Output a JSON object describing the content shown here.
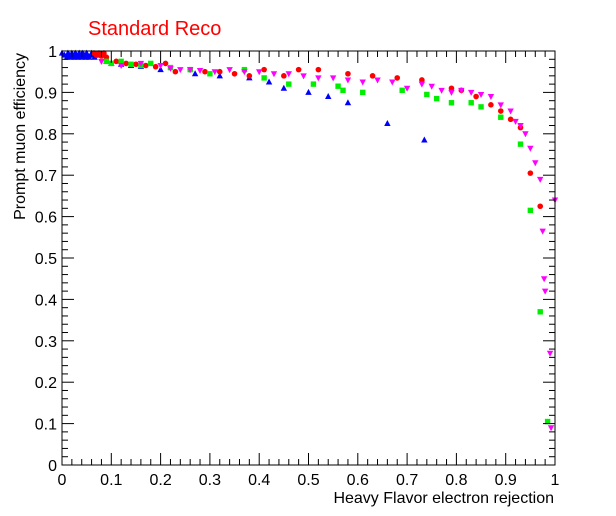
{
  "chart_data": {
    "type": "scatter",
    "title": "Standard Reco",
    "xlabel": "Heavy Flavor electron rejection",
    "ylabel": "Prompt muon efficiency",
    "xlim": [
      0,
      1
    ],
    "ylim": [
      0,
      1
    ],
    "x_ticks": [
      "0",
      "0.1",
      "0.2",
      "0.3",
      "0.4",
      "0.5",
      "0.6",
      "0.7",
      "0.8",
      "0.9",
      "1"
    ],
    "y_ticks": [
      "0",
      "0.1",
      "0.2",
      "0.3",
      "0.4",
      "0.5",
      "0.6",
      "0.7",
      "0.8",
      "0.9",
      "1"
    ],
    "grid": false,
    "legend": "none",
    "colors": {
      "title": "#ff0000",
      "frame": "#000000"
    },
    "series": [
      {
        "marker": "triangle-up",
        "color": "#0000ff",
        "points": [
          [
            0.0,
            0.995
          ],
          [
            0.005,
            0.99
          ],
          [
            0.01,
            0.985
          ],
          [
            0.012,
            0.995
          ],
          [
            0.015,
            0.99
          ],
          [
            0.018,
            0.985
          ],
          [
            0.02,
            0.995
          ],
          [
            0.022,
            0.99
          ],
          [
            0.025,
            0.985
          ],
          [
            0.027,
            0.995
          ],
          [
            0.03,
            0.99
          ],
          [
            0.032,
            0.985
          ],
          [
            0.035,
            0.995
          ],
          [
            0.037,
            0.99
          ],
          [
            0.04,
            0.985
          ],
          [
            0.042,
            0.995
          ],
          [
            0.045,
            0.99
          ],
          [
            0.048,
            0.985
          ],
          [
            0.05,
            0.995
          ],
          [
            0.052,
            0.99
          ],
          [
            0.055,
            0.985
          ],
          [
            0.058,
            0.99
          ],
          [
            0.06,
            0.995
          ],
          [
            0.063,
            0.99
          ],
          [
            0.066,
            0.985
          ],
          [
            0.07,
            0.99
          ],
          [
            0.09,
            0.975
          ],
          [
            0.1,
            0.97
          ],
          [
            0.12,
            0.968
          ],
          [
            0.14,
            0.965
          ],
          [
            0.16,
            0.963
          ],
          [
            0.2,
            0.955
          ],
          [
            0.27,
            0.945
          ],
          [
            0.32,
            0.94
          ],
          [
            0.38,
            0.935
          ],
          [
            0.42,
            0.925
          ],
          [
            0.45,
            0.91
          ],
          [
            0.5,
            0.9
          ],
          [
            0.54,
            0.89
          ],
          [
            0.58,
            0.875
          ],
          [
            0.66,
            0.825
          ],
          [
            0.735,
            0.785
          ]
        ]
      },
      {
        "marker": "circle",
        "color": "#ff0000",
        "points": [
          [
            0.065,
            0.995
          ],
          [
            0.07,
            0.99
          ],
          [
            0.075,
            0.995
          ],
          [
            0.08,
            0.988
          ],
          [
            0.085,
            0.995
          ],
          [
            0.09,
            0.985
          ],
          [
            0.11,
            0.975
          ],
          [
            0.13,
            0.97
          ],
          [
            0.15,
            0.968
          ],
          [
            0.17,
            0.965
          ],
          [
            0.19,
            0.962
          ],
          [
            0.21,
            0.97
          ],
          [
            0.23,
            0.95
          ],
          [
            0.26,
            0.955
          ],
          [
            0.29,
            0.95
          ],
          [
            0.32,
            0.95
          ],
          [
            0.35,
            0.945
          ],
          [
            0.38,
            0.94
          ],
          [
            0.41,
            0.955
          ],
          [
            0.45,
            0.94
          ],
          [
            0.48,
            0.955
          ],
          [
            0.52,
            0.955
          ],
          [
            0.58,
            0.945
          ],
          [
            0.63,
            0.94
          ],
          [
            0.68,
            0.935
          ],
          [
            0.73,
            0.93
          ],
          [
            0.79,
            0.91
          ],
          [
            0.81,
            0.905
          ],
          [
            0.84,
            0.89
          ],
          [
            0.87,
            0.87
          ],
          [
            0.89,
            0.855
          ],
          [
            0.91,
            0.835
          ],
          [
            0.93,
            0.815
          ],
          [
            0.95,
            0.705
          ],
          [
            0.97,
            0.625
          ]
        ]
      },
      {
        "marker": "square",
        "color": "#00ee00",
        "points": [
          [
            0.09,
            0.975
          ],
          [
            0.1,
            0.97
          ],
          [
            0.12,
            0.975
          ],
          [
            0.14,
            0.968
          ],
          [
            0.16,
            0.965
          ],
          [
            0.18,
            0.97
          ],
          [
            0.22,
            0.96
          ],
          [
            0.26,
            0.955
          ],
          [
            0.3,
            0.945
          ],
          [
            0.37,
            0.955
          ],
          [
            0.41,
            0.935
          ],
          [
            0.46,
            0.92
          ],
          [
            0.51,
            0.92
          ],
          [
            0.56,
            0.915
          ],
          [
            0.57,
            0.905
          ],
          [
            0.61,
            0.9
          ],
          [
            0.69,
            0.905
          ],
          [
            0.74,
            0.895
          ],
          [
            0.76,
            0.885
          ],
          [
            0.79,
            0.875
          ],
          [
            0.83,
            0.875
          ],
          [
            0.85,
            0.865
          ],
          [
            0.89,
            0.84
          ],
          [
            0.93,
            0.775
          ],
          [
            0.95,
            0.615
          ],
          [
            0.97,
            0.37
          ],
          [
            0.985,
            0.105
          ]
        ]
      },
      {
        "marker": "triangle-down",
        "color": "#ff00ff",
        "points": [
          [
            0.08,
            0.975
          ],
          [
            0.12,
            0.965
          ],
          [
            0.16,
            0.97
          ],
          [
            0.2,
            0.965
          ],
          [
            0.22,
            0.958
          ],
          [
            0.24,
            0.955
          ],
          [
            0.26,
            0.955
          ],
          [
            0.28,
            0.953
          ],
          [
            0.31,
            0.95
          ],
          [
            0.34,
            0.955
          ],
          [
            0.37,
            0.95
          ],
          [
            0.4,
            0.95
          ],
          [
            0.43,
            0.945
          ],
          [
            0.46,
            0.945
          ],
          [
            0.49,
            0.94
          ],
          [
            0.52,
            0.935
          ],
          [
            0.55,
            0.935
          ],
          [
            0.58,
            0.93
          ],
          [
            0.61,
            0.925
          ],
          [
            0.64,
            0.93
          ],
          [
            0.67,
            0.925
          ],
          [
            0.7,
            0.91
          ],
          [
            0.73,
            0.92
          ],
          [
            0.75,
            0.915
          ],
          [
            0.77,
            0.905
          ],
          [
            0.79,
            0.9
          ],
          [
            0.81,
            0.905
          ],
          [
            0.83,
            0.9
          ],
          [
            0.85,
            0.895
          ],
          [
            0.87,
            0.89
          ],
          [
            0.89,
            0.87
          ],
          [
            0.91,
            0.855
          ],
          [
            0.92,
            0.83
          ],
          [
            0.93,
            0.82
          ],
          [
            0.94,
            0.8
          ],
          [
            0.95,
            0.765
          ],
          [
            0.96,
            0.73
          ],
          [
            0.97,
            0.69
          ],
          [
            0.975,
            0.565
          ],
          [
            0.978,
            0.45
          ],
          [
            0.98,
            0.42
          ],
          [
            0.99,
            0.27
          ],
          [
            0.992,
            0.09
          ],
          [
            1.0,
            0.64
          ]
        ]
      }
    ]
  }
}
